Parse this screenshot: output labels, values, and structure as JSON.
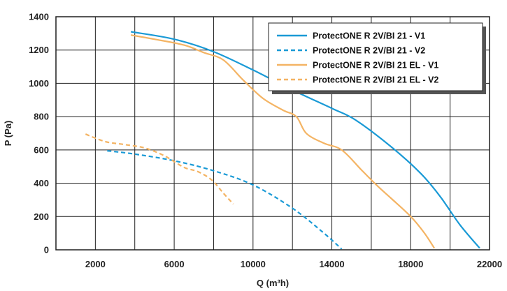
{
  "chart_data": {
    "type": "line",
    "title": "",
    "xlabel": "Q (m³h)",
    "ylabel": "P (Pa)",
    "xlim": [
      0,
      22000
    ],
    "ylim": [
      0,
      1400
    ],
    "xticks": [
      2000,
      6000,
      10000,
      14000,
      18000,
      22000
    ],
    "yticks": [
      0,
      200,
      400,
      600,
      800,
      1000,
      1200,
      1400
    ],
    "grid": true,
    "legend": "top-right",
    "series": [
      {
        "name": "ProtectONE R 2V/BI 21 - V1",
        "color": "#1a9ad6",
        "dash": "solid",
        "points": [
          [
            3800,
            1310
          ],
          [
            6000,
            1265
          ],
          [
            8000,
            1190
          ],
          [
            10000,
            1080
          ],
          [
            12000,
            960
          ],
          [
            14000,
            850
          ],
          [
            15200,
            780
          ],
          [
            17000,
            620
          ],
          [
            18500,
            460
          ],
          [
            19500,
            320
          ],
          [
            20500,
            150
          ],
          [
            21500,
            10
          ]
        ]
      },
      {
        "name": "ProtectONE R 2V/BI 21 - V2",
        "color": "#1a9ad6",
        "dash": "dashed",
        "points": [
          [
            2600,
            595
          ],
          [
            4000,
            575
          ],
          [
            6000,
            535
          ],
          [
            8000,
            475
          ],
          [
            10000,
            390
          ],
          [
            12000,
            250
          ],
          [
            13500,
            110
          ],
          [
            14500,
            5
          ]
        ]
      },
      {
        "name": "ProtectONE R 2V/BI 21 EL - V1",
        "color": "#f4b464",
        "dash": "solid",
        "points": [
          [
            3800,
            1290
          ],
          [
            5000,
            1265
          ],
          [
            6500,
            1230
          ],
          [
            7500,
            1185
          ],
          [
            8500,
            1140
          ],
          [
            9500,
            1020
          ],
          [
            10500,
            910
          ],
          [
            11500,
            840
          ],
          [
            12200,
            800
          ],
          [
            12700,
            700
          ],
          [
            13600,
            640
          ],
          [
            14500,
            600
          ],
          [
            15500,
            480
          ],
          [
            16300,
            385
          ],
          [
            17000,
            310
          ],
          [
            18000,
            200
          ],
          [
            18700,
            100
          ],
          [
            19200,
            10
          ]
        ]
      },
      {
        "name": "ProtectONE R 2V/BI 21 EL - V2",
        "color": "#f4b464",
        "dash": "dashed",
        "points": [
          [
            1500,
            695
          ],
          [
            2500,
            650
          ],
          [
            3500,
            632
          ],
          [
            4500,
            612
          ],
          [
            5500,
            565
          ],
          [
            6500,
            495
          ],
          [
            7200,
            470
          ],
          [
            7900,
            420
          ],
          [
            8500,
            340
          ],
          [
            9000,
            275
          ]
        ]
      }
    ]
  }
}
